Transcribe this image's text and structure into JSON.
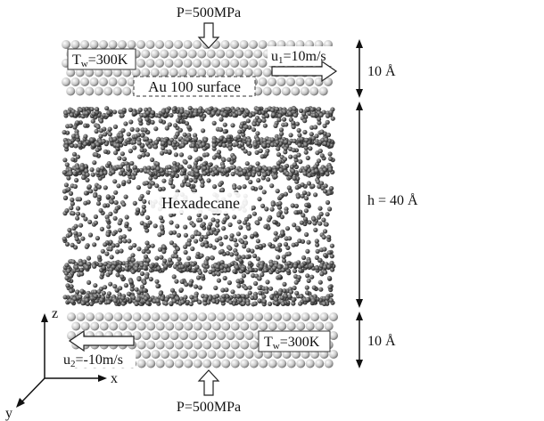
{
  "top": {
    "pressure": "P=500MPa",
    "temperature": {
      "base": "T",
      "sub": "w",
      "rest": "=300K"
    },
    "velocity": {
      "base": "u",
      "sub": "1",
      "rest": "=10m/s"
    },
    "surface": "Au 100 surface",
    "thickness": "10 Å"
  },
  "liquid": {
    "label": "Hexadecane",
    "height": "h = 40 Å"
  },
  "bottom": {
    "pressure": "P=500MPa",
    "temperature": {
      "base": "T",
      "sub": "w",
      "rest": "=300K"
    },
    "velocity": {
      "base": "u",
      "sub": "2",
      "rest": "=-10m/s"
    },
    "thickness": "10 Å"
  },
  "axes": {
    "z": "z",
    "x": "x",
    "y": "y"
  }
}
